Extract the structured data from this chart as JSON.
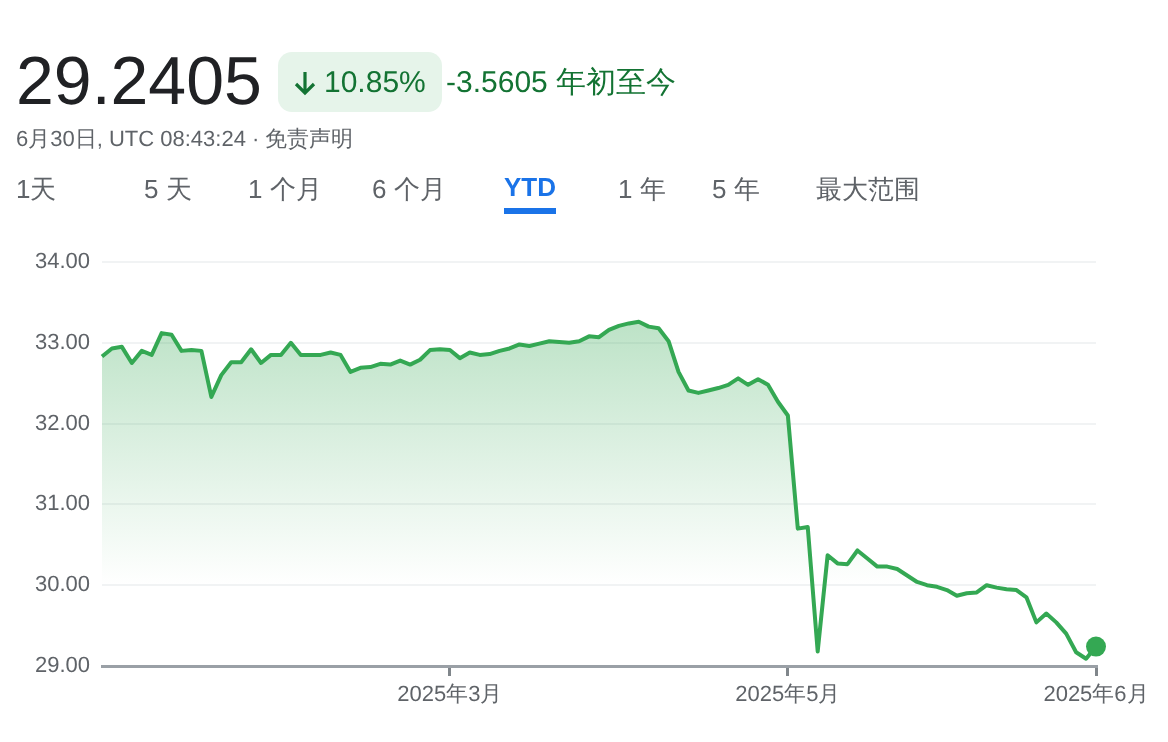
{
  "chart_data": {
    "type": "area",
    "title": "29.2405",
    "annotations": [
      "10.85%",
      "-3.5605 年初至今",
      "6月30日, UTC 08:43:24 · 免责声明",
      "1天",
      "5 天",
      "1 个月",
      "6 个月",
      "YTD",
      "1 年",
      "5 年",
      "最大范围"
    ],
    "categories": [
      null,
      null,
      null,
      null,
      null,
      null,
      null,
      null,
      null,
      null,
      null,
      null,
      null,
      null,
      null,
      null,
      null,
      null,
      null,
      null,
      null,
      null,
      null,
      null,
      null,
      null,
      null,
      null,
      null,
      null,
      null,
      null,
      null,
      null,
      null,
      "2025年3月",
      null,
      null,
      null,
      null,
      null,
      null,
      null,
      null,
      null,
      null,
      null,
      null,
      null,
      null,
      null,
      null,
      null,
      null,
      null,
      null,
      null,
      null,
      null,
      null,
      null,
      null,
      null,
      null,
      null,
      null,
      null,
      null,
      null,
      "2025年5月",
      null,
      null,
      null,
      null,
      null,
      null,
      null,
      null,
      null,
      null,
      null,
      null,
      null,
      null,
      null,
      null,
      null,
      null,
      null,
      null,
      null,
      null,
      null,
      null,
      null,
      null,
      null,
      null,
      null,
      null,
      "2025年6月"
    ],
    "series": [
      {
        "color": "#34a853",
        "values": [
          32.83,
          32.93,
          32.95,
          32.75,
          32.9,
          32.85,
          33.12,
          33.1,
          32.9,
          32.91,
          32.9,
          32.33,
          32.6,
          32.76,
          32.76,
          32.92,
          32.75,
          32.85,
          32.85,
          33.0,
          32.85,
          32.85,
          32.85,
          32.88,
          32.85,
          32.64,
          32.69,
          32.7,
          32.74,
          32.73,
          32.78,
          32.73,
          32.79,
          32.91,
          32.92,
          32.91,
          32.81,
          32.88,
          32.85,
          32.86,
          32.9,
          32.93,
          32.98,
          32.96,
          32.99,
          33.02,
          33.01,
          33.0,
          33.02,
          33.08,
          33.07,
          33.16,
          33.21,
          33.24,
          33.26,
          33.2,
          33.18,
          33.02,
          32.64,
          32.41,
          32.38,
          32.41,
          32.44,
          32.48,
          32.56,
          32.48,
          32.55,
          32.48,
          32.27,
          32.1,
          30.7,
          30.72,
          29.18,
          30.37,
          30.27,
          30.26,
          30.43,
          30.33,
          30.23,
          30.23,
          30.2,
          30.12,
          30.04,
          30.0,
          29.98,
          29.94,
          29.87,
          29.9,
          29.91,
          30.0,
          29.97,
          29.95,
          29.94,
          29.85,
          29.54,
          29.65,
          29.54,
          29.4,
          29.17,
          29.09,
          29.24
        ]
      }
    ],
    "ylim": [
      29,
      34
    ],
    "yticks": [
      {
        "value": 29,
        "label": "29.00"
      },
      {
        "value": 30,
        "label": "30.00"
      },
      {
        "value": 31,
        "label": "31.00"
      },
      {
        "value": 32,
        "label": "32.00"
      },
      {
        "value": 33,
        "label": "33.00"
      },
      {
        "value": 34,
        "label": "34.00"
      }
    ],
    "grid": "y",
    "legend": false,
    "marker": "none",
    "line_style": "solid"
  }
}
